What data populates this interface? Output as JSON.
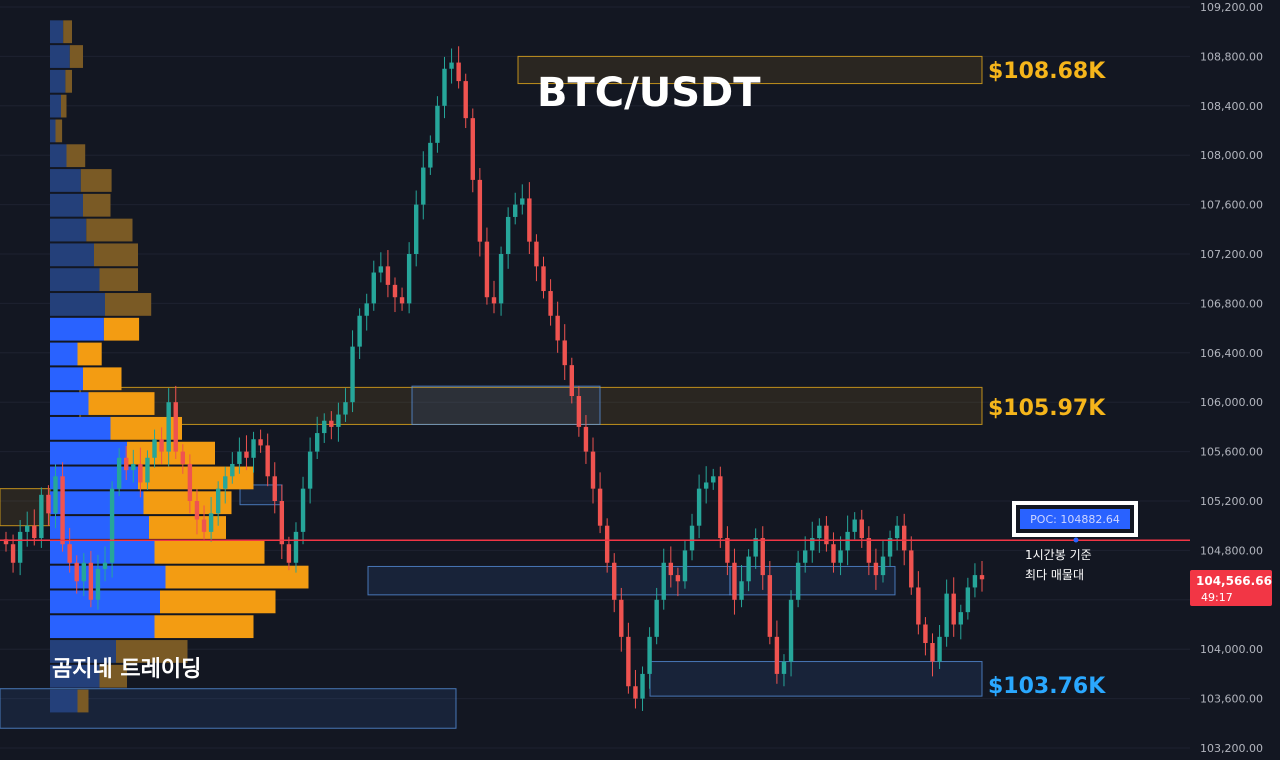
{
  "chart_data": {
    "type": "candlestick",
    "title": "BTC/USDT",
    "ylim": [
      103200,
      109200
    ],
    "y_ticks": [
      109200,
      108800,
      108400,
      108000,
      107600,
      107200,
      106800,
      106400,
      106000,
      105600,
      105200,
      104800,
      104400,
      104000,
      103600,
      103200
    ],
    "y_tick_labels": [
      "109,200.00",
      "108,800.00",
      "108,400.00",
      "108,000.00",
      "107,600.00",
      "107,200.00",
      "106,800.00",
      "106,400.00",
      "106,000.00",
      "105,600.00",
      "105,200.00",
      "104,800.00",
      "104,400.00",
      "104,000.00",
      "103,600.00",
      "103,200.00"
    ],
    "close_path": [
      104850,
      104700,
      104950,
      105000,
      104900,
      105250,
      105100,
      105400,
      104850,
      104700,
      104550,
      104700,
      104400,
      104650,
      104700,
      105300,
      105550,
      105450,
      105500,
      105350,
      105550,
      105700,
      105600,
      106000,
      105600,
      105500,
      105200,
      105050,
      104950,
      105100,
      105300,
      105400,
      105500,
      105600,
      105550,
      105700,
      105650,
      105400,
      105200,
      104850,
      104700,
      104950,
      105300,
      105600,
      105750,
      105850,
      105800,
      105900,
      106000,
      106450,
      106700,
      106800,
      107050,
      107100,
      106950,
      106850,
      106800,
      107200,
      107600,
      107900,
      108100,
      108400,
      108700,
      108750,
      108600,
      108300,
      107800,
      107300,
      106850,
      106800,
      107200,
      107500,
      107600,
      107650,
      107300,
      107100,
      106900,
      106700,
      106500,
      106300,
      106050,
      105800,
      105600,
      105300,
      105000,
      104700,
      104400,
      104100,
      103700,
      103600,
      103800,
      104100,
      104400,
      104700,
      104600,
      104550,
      104800,
      105000,
      105300,
      105350,
      105400,
      104900,
      104700,
      104400,
      104550,
      104750,
      104900,
      104600,
      104100,
      103800,
      103900,
      104400,
      104700,
      104800,
      104900,
      105000,
      104850,
      104700,
      104800,
      104950,
      105050,
      104900,
      104700,
      104600,
      104750,
      104900,
      105000,
      104800,
      104500,
      104200,
      104050,
      103900,
      104100,
      104450,
      104200,
      104300,
      104500,
      104600,
      104566
    ],
    "price_levels": [
      {
        "label": "$108.68K",
        "color": "#f5b51b",
        "from": 108580,
        "to": 108800
      },
      {
        "label": "$105.97K",
        "color": "#f5b51b",
        "from": 105820,
        "to": 106120
      },
      {
        "label": "$103.76K",
        "color": "#2aa8ff",
        "from": 103620,
        "to": 103900
      }
    ],
    "volume_profile": {
      "buy": [
        0.12,
        0.18,
        0.14,
        0.1,
        0.05,
        0.15,
        0.28,
        0.3,
        0.33,
        0.4,
        0.45,
        0.5,
        0.49,
        0.25,
        0.3,
        0.35,
        0.55,
        0.7,
        0.8,
        0.85,
        0.9,
        0.95,
        1.05,
        1.0,
        0.95,
        0.6,
        0.45,
        0.25
      ],
      "sell": [
        0.08,
        0.12,
        0.06,
        0.05,
        0.06,
        0.17,
        0.28,
        0.25,
        0.42,
        0.4,
        0.35,
        0.42,
        0.32,
        0.22,
        0.35,
        0.6,
        0.65,
        0.8,
        1.05,
        0.8,
        0.7,
        1.0,
        1.3,
        1.05,
        0.9,
        0.65,
        0.25,
        0.1
      ],
      "range": [
        103480,
        109100
      ]
    },
    "poc": {
      "label": "POC: 104882.64",
      "value": 104882.64
    },
    "last_price": {
      "value": "104,566.66",
      "timer": "49:17"
    },
    "annotation": [
      "1시간봉 기준",
      "최다 매물대"
    ],
    "watermark": "곰지네 트레이딩"
  },
  "colors": {
    "background": "#131722",
    "up": "#26a69a",
    "down": "#ef5350",
    "buy_volume": "#2962ff",
    "sell_volume": "#f39c12",
    "poc_line": "#f23645",
    "gold": "#f5b51b",
    "blue": "#2aa8ff"
  }
}
